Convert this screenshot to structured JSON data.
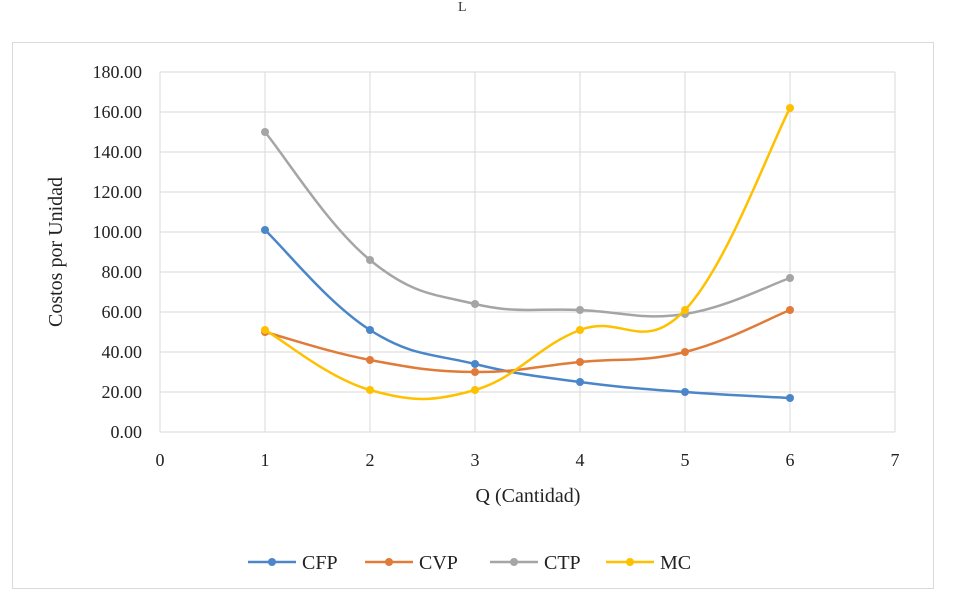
{
  "header_glyph": "L",
  "chart_data": {
    "type": "line",
    "title": "",
    "xlabel": "Q (Cantidad)",
    "ylabel": "Costos por Unidad",
    "xlim": [
      0,
      7
    ],
    "ylim": [
      0,
      180
    ],
    "xticks": [
      "0",
      "1",
      "2",
      "3",
      "4",
      "5",
      "6",
      "7"
    ],
    "yticks": [
      "0.00",
      "20.00",
      "40.00",
      "60.00",
      "80.00",
      "100.00",
      "120.00",
      "140.00",
      "160.00",
      "180.00"
    ],
    "grid": true,
    "legend_position": "bottom",
    "x": [
      1,
      2,
      3,
      4,
      5,
      6
    ],
    "series": [
      {
        "name": "CFP",
        "color": "#4a86c8",
        "values": [
          101,
          51,
          34,
          25,
          20,
          17
        ]
      },
      {
        "name": "CVP",
        "color": "#e07b39",
        "values": [
          50,
          36,
          30,
          35,
          40,
          61
        ]
      },
      {
        "name": "CTP",
        "color": "#a5a5a5",
        "values": [
          150,
          86,
          64,
          61,
          59,
          77
        ]
      },
      {
        "name": "MC",
        "color": "#ffc000",
        "values": [
          51,
          21,
          21,
          51,
          61,
          162
        ]
      }
    ]
  }
}
